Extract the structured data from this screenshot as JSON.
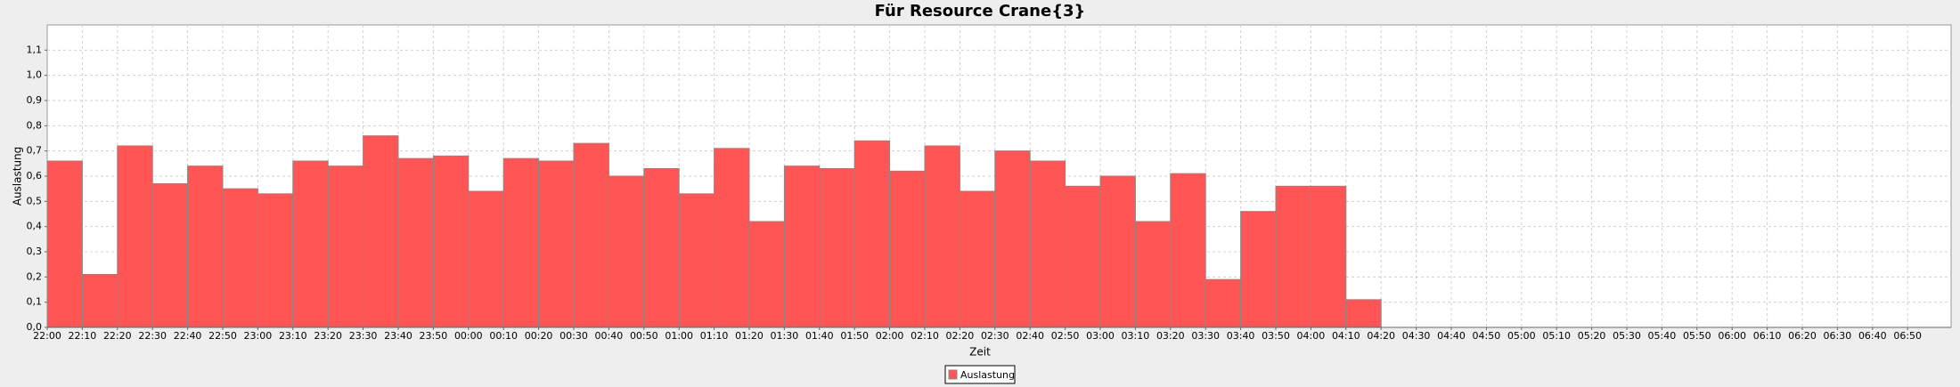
{
  "chart_data": {
    "type": "bar",
    "title": "Für Resource Crane{3}",
    "x_label": "Zeit",
    "y_label": "Auslastung",
    "categories": [
      "22:00",
      "22:10",
      "22:20",
      "22:30",
      "22:40",
      "22:50",
      "23:00",
      "23:10",
      "23:20",
      "23:30",
      "23:40",
      "23:50",
      "00:00",
      "00:10",
      "00:20",
      "00:30",
      "00:40",
      "00:50",
      "01:00",
      "01:10",
      "01:20",
      "01:30",
      "01:40",
      "01:50",
      "02:00",
      "02:10",
      "02:20",
      "02:30",
      "02:40",
      "02:50",
      "03:00",
      "03:10",
      "03:20",
      "03:30",
      "03:40",
      "03:50",
      "04:00",
      "04:10",
      "04:20",
      "04:30",
      "04:40",
      "04:50",
      "05:00",
      "05:10",
      "05:20",
      "05:30",
      "05:40",
      "05:50",
      "06:00",
      "06:10",
      "06:20",
      "06:30",
      "06:40",
      "06:50"
    ],
    "series": [
      {
        "name": "Auslastung",
        "color": "#ff5555",
        "values": [
          0.66,
          0.21,
          0.72,
          0.57,
          0.64,
          0.55,
          0.53,
          0.66,
          0.64,
          0.76,
          0.67,
          0.68,
          0.54,
          0.67,
          0.66,
          0.73,
          0.6,
          0.63,
          0.53,
          0.71,
          0.42,
          0.64,
          0.63,
          0.74,
          0.62,
          0.72,
          0.54,
          0.7,
          0.66,
          0.56,
          0.6,
          0.42,
          0.61,
          0.19,
          0.46,
          0.56,
          0.56,
          0.11,
          null,
          null,
          null,
          null,
          null,
          null,
          null,
          null,
          null,
          null,
          null,
          null,
          null,
          null,
          null,
          null
        ]
      }
    ],
    "ylim": [
      0,
      1.2
    ],
    "yticks": [
      {
        "value": 0,
        "label": "0,0"
      },
      {
        "value": 0.1,
        "label": "0,1"
      },
      {
        "value": 0.2,
        "label": "0,2"
      },
      {
        "value": 0.3,
        "label": "0,3"
      },
      {
        "value": 0.4,
        "label": "0,4"
      },
      {
        "value": 0.5,
        "label": "0,5"
      },
      {
        "value": 0.6,
        "label": "0,6"
      },
      {
        "value": 0.7,
        "label": "0,7"
      },
      {
        "value": 0.8,
        "label": "0,8"
      },
      {
        "value": 0.9,
        "label": "0,9"
      },
      {
        "value": 1.0,
        "label": "1,0"
      },
      {
        "value": 1.1,
        "label": "1,1"
      }
    ],
    "grid": true,
    "legend": "bottom"
  }
}
